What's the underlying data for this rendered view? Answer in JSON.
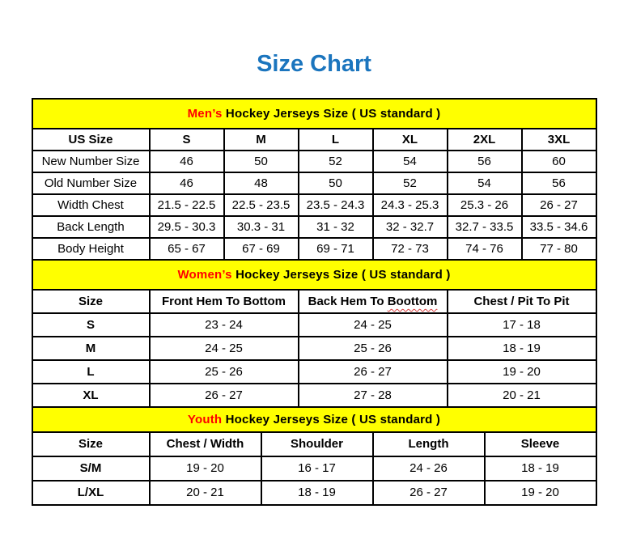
{
  "page": {
    "title": "Size Chart",
    "title_color": "#1b75be"
  },
  "colors": {
    "accent_red": "#ff0000",
    "band_yellow": "#ffff00",
    "border_black": "#000000"
  },
  "tables": [
    {
      "id": "mens",
      "band": {
        "highlight": "Men’s",
        "rest": " Hockey Jerseys Size ( US standard )"
      },
      "columns": [
        {
          "label": "US Size"
        },
        {
          "label": "S"
        },
        {
          "label": "M"
        },
        {
          "label": "L"
        },
        {
          "label": "XL"
        },
        {
          "label": "2XL"
        },
        {
          "label": "3XL"
        }
      ],
      "rows": [
        {
          "label": "New Number Size",
          "values": [
            "46",
            "50",
            "52",
            "54",
            "56",
            "60"
          ]
        },
        {
          "label": "Old Number Size",
          "values": [
            "46",
            "48",
            "50",
            "52",
            "54",
            "56"
          ]
        },
        {
          "label": "Width Chest",
          "values": [
            "21.5 - 22.5",
            "22.5 - 23.5",
            "23.5 - 24.3",
            "24.3 - 25.3",
            "25.3 - 26",
            "26 - 27"
          ]
        },
        {
          "label": "Back Length",
          "values": [
            "29.5 - 30.3",
            "30.3 - 31",
            "31 - 32",
            "32 - 32.7",
            "32.7 - 33.5",
            "33.5 - 34.6"
          ]
        },
        {
          "label": "Body Height",
          "values": [
            "65 - 67",
            "67 - 69",
            "69 - 71",
            "72 - 73",
            "74 - 76",
            "77 - 80"
          ]
        }
      ]
    },
    {
      "id": "womens",
      "band": {
        "highlight": "Women’s",
        "rest": " Hockey Jerseys Size ( US standard )"
      },
      "columns": [
        {
          "label": "Size"
        },
        {
          "label": "Front Hem To Bottom"
        },
        {
          "label": "Back Hem To ",
          "misspelled": "Boottom"
        },
        {
          "label": "Chest / Pit To Pit"
        }
      ],
      "rows": [
        {
          "label": "S",
          "values": [
            "23 - 24",
            "24 - 25",
            "17 - 18"
          ]
        },
        {
          "label": "M",
          "values": [
            "24 - 25",
            "25 - 26",
            "18 - 19"
          ]
        },
        {
          "label": "L",
          "values": [
            "25 - 26",
            "26 - 27",
            "19 - 20"
          ]
        },
        {
          "label": "XL",
          "values": [
            "26 - 27",
            "27 - 28",
            "20 - 21"
          ]
        }
      ]
    },
    {
      "id": "youth",
      "band": {
        "highlight": "Youth",
        "rest": " Hockey Jerseys Size ( US standard )"
      },
      "columns": [
        {
          "label": "Size"
        },
        {
          "label": "Chest / Width"
        },
        {
          "label": "Shoulder"
        },
        {
          "label": "Length"
        },
        {
          "label": "Sleeve"
        }
      ],
      "rows": [
        {
          "label": "S/M",
          "values": [
            "19 - 20",
            "16 - 17",
            "24 - 26",
            "18 - 19"
          ]
        },
        {
          "label": "L/XL",
          "values": [
            "20 - 21",
            "18 - 19",
            "26 - 27",
            "19 - 20"
          ]
        }
      ]
    }
  ]
}
